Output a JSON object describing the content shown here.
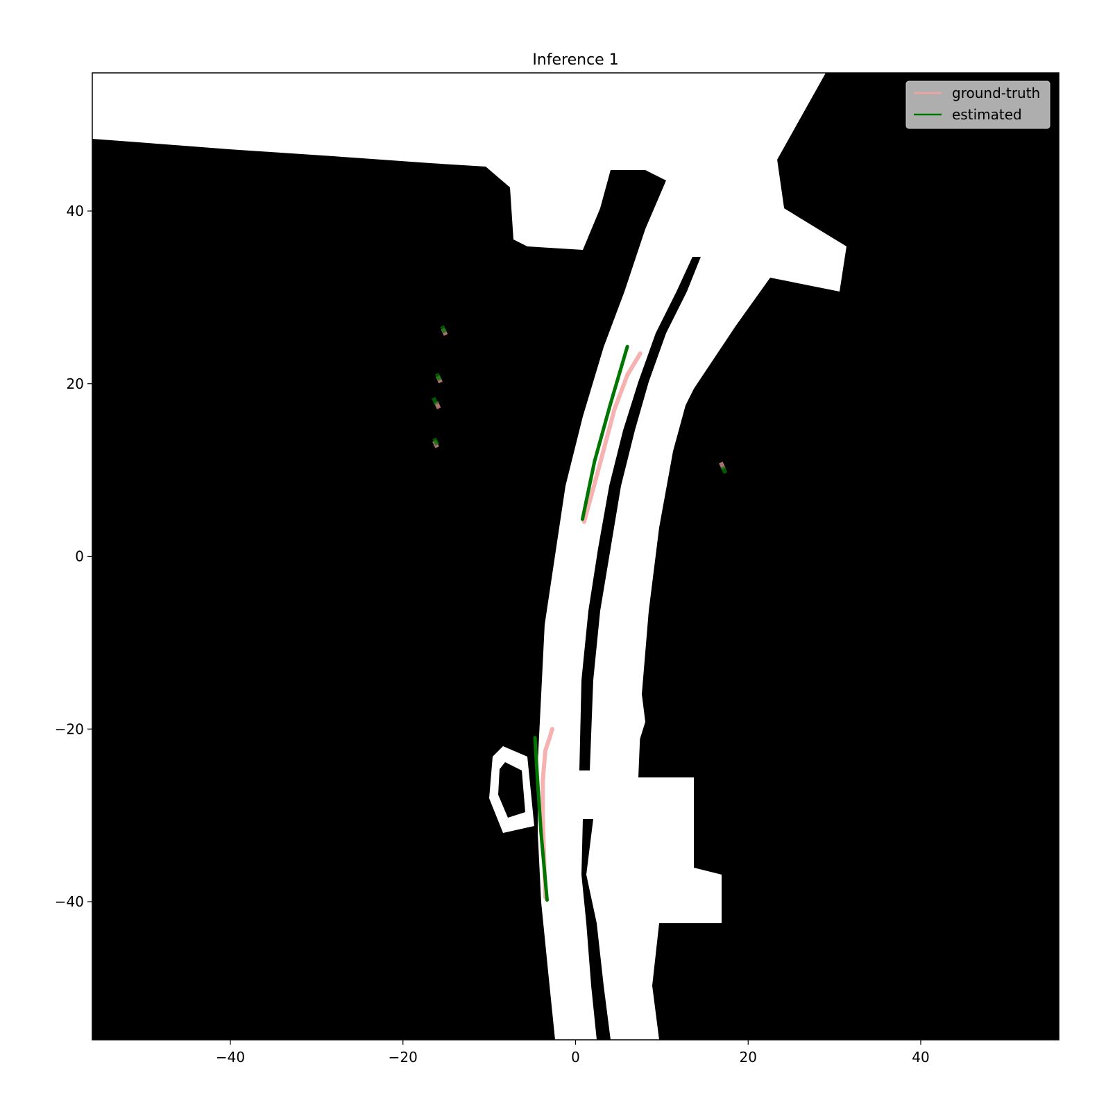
{
  "chart_data": {
    "type": "line",
    "title": "Inference 1",
    "xlabel": "",
    "ylabel": "",
    "xlim": [
      -56,
      56
    ],
    "ylim": [
      -56,
      56
    ],
    "xticks": [
      -40,
      -20,
      0,
      20,
      40
    ],
    "yticks": [
      40,
      20,
      0,
      -20,
      -40
    ],
    "xtick_labels": [
      "−40",
      "−20",
      "0",
      "20",
      "40"
    ],
    "ytick_labels": [
      "40",
      "20",
      "0",
      "−20",
      "−40"
    ],
    "grid": false,
    "background": "occupancy map (drivable area white, non-drivable black)",
    "legend": {
      "position": "top-right",
      "entries": [
        "ground-truth",
        "estimated"
      ]
    },
    "series": [
      {
        "name": "ground-truth",
        "color": "#f4a3a3",
        "segments": [
          {
            "x": [
              1.0,
              2.5,
              4.5,
              6.0,
              7.5
            ],
            "y": [
              4.0,
              9.5,
              17.0,
              21.0,
              23.5
            ]
          },
          {
            "x": [
              -3.5,
              -3.8,
              -3.8,
              -3.5,
              -3.0,
              -2.7
            ],
            "y": [
              -39.5,
              -30.0,
              -26.0,
              -22.5,
              -21.0,
              -20.0
            ]
          },
          {
            "x": [
              -15.2
            ],
            "y": [
              26.0
            ]
          },
          {
            "x": [
              -15.8
            ],
            "y": [
              20.5
            ]
          },
          {
            "x": [
              -16.0
            ],
            "y": [
              17.5
            ]
          },
          {
            "x": [
              -16.2
            ],
            "y": [
              13.0
            ]
          },
          {
            "x": [
              17.0
            ],
            "y": [
              10.5
            ]
          }
        ]
      },
      {
        "name": "estimated",
        "color": "#007500",
        "segments": [
          {
            "x": [
              0.8,
              2.2,
              4.0,
              6.0
            ],
            "y": [
              4.3,
              11.0,
              17.5,
              24.3
            ]
          },
          {
            "x": [
              -3.3,
              -4.0,
              -4.4,
              -4.7
            ],
            "y": [
              -39.8,
              -32.0,
              -26.0,
              -21.0
            ]
          },
          {
            "x": [
              -15.3
            ],
            "y": [
              26.3
            ]
          },
          {
            "x": [
              -15.9
            ],
            "y": [
              20.8
            ]
          },
          {
            "x": [
              -16.3
            ],
            "y": [
              18.0
            ]
          },
          {
            "x": [
              -16.2
            ],
            "y": [
              13.3
            ]
          },
          {
            "x": [
              17.2
            ],
            "y": [
              10.0
            ]
          }
        ]
      }
    ]
  }
}
